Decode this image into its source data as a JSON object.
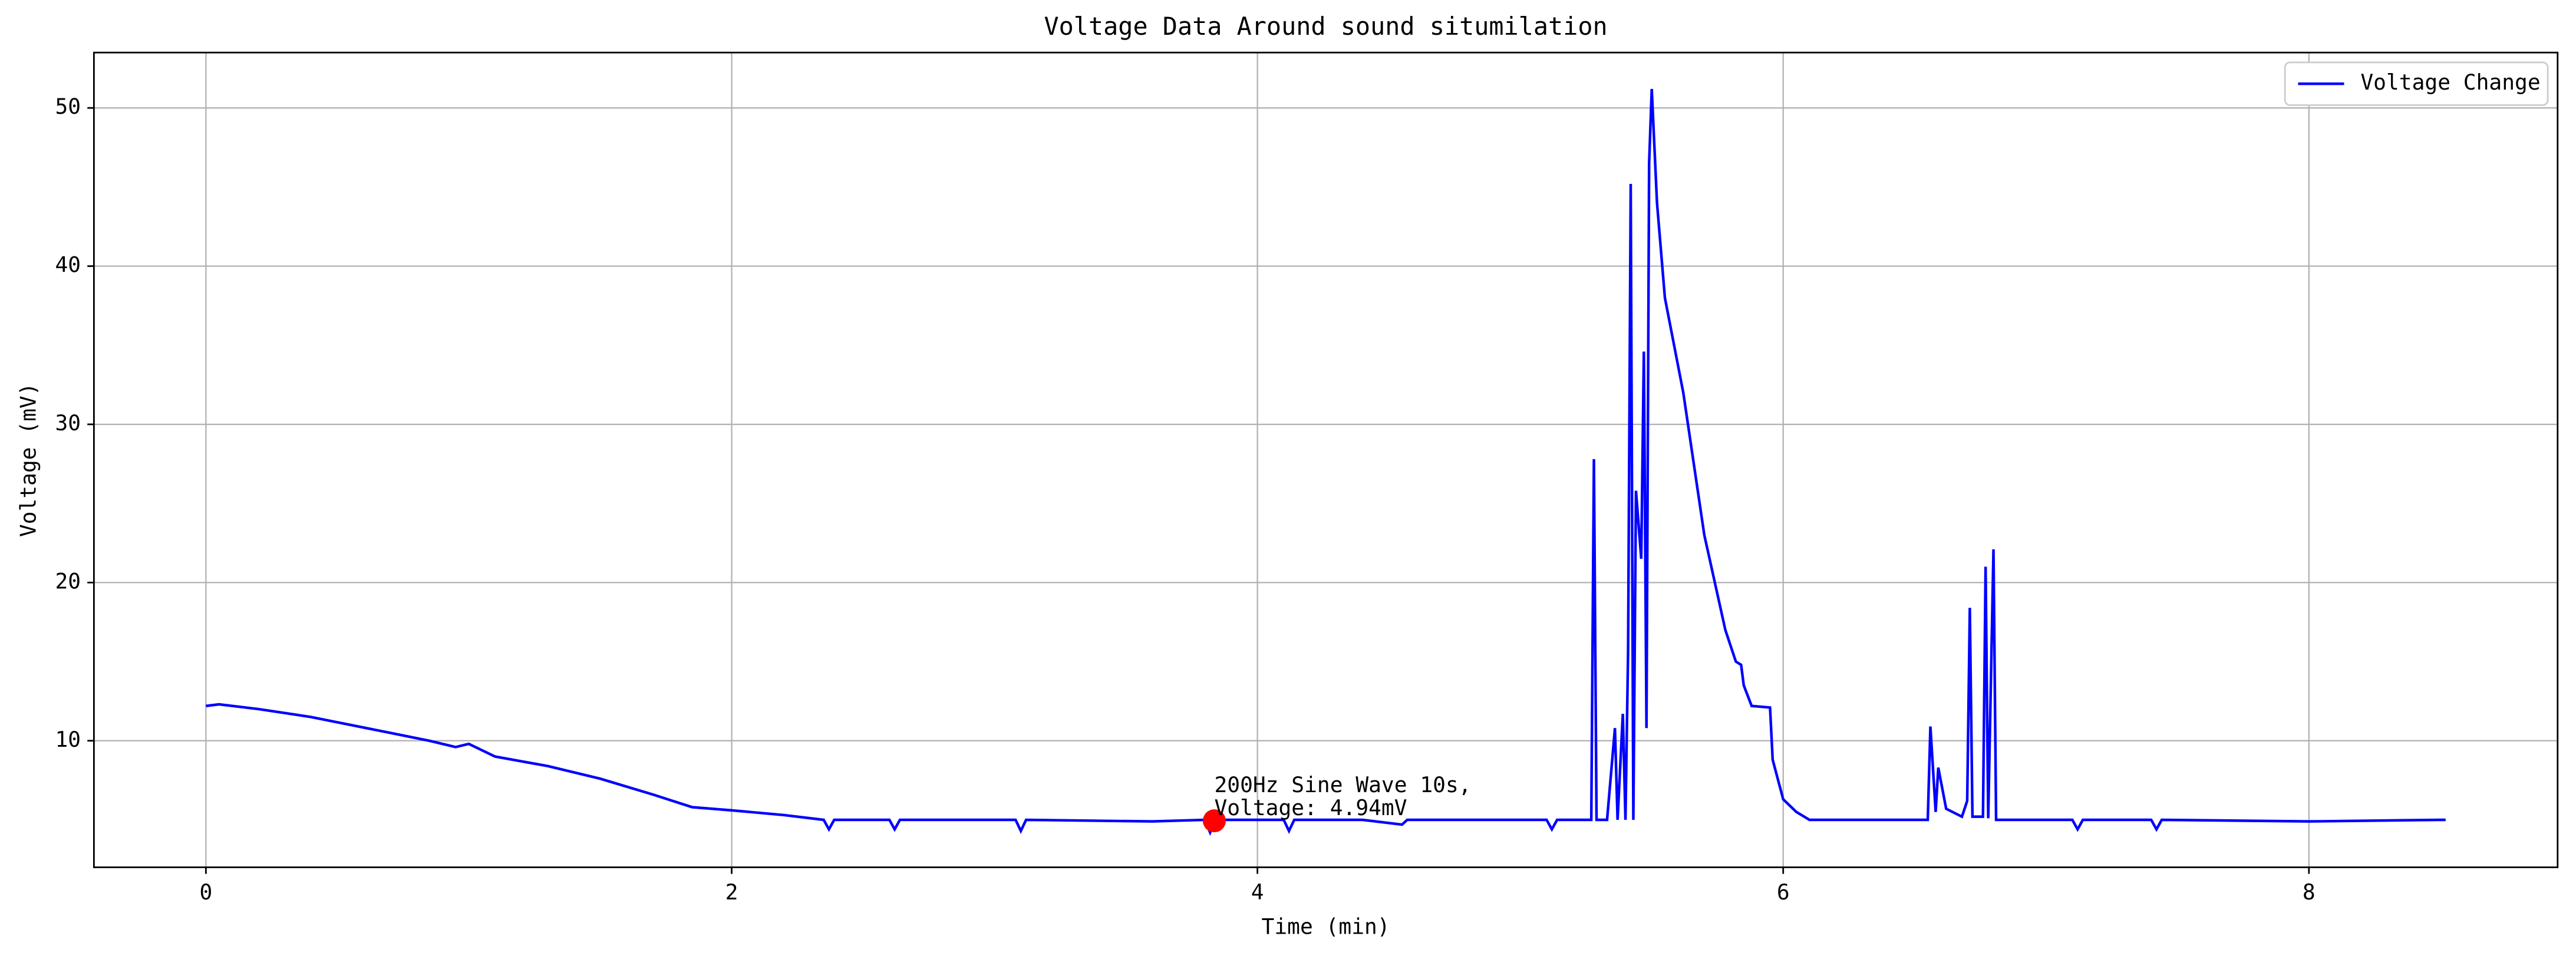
{
  "chart_data": {
    "type": "line",
    "title": "Voltage Data Around sound situmilation",
    "x_label": "Time (min)",
    "y_label": "Voltage (mV)",
    "xlim": [
      -0.426,
      8.946
    ],
    "ylim": [
      2.0,
      53.5
    ],
    "xticks": [
      0,
      2,
      4,
      6,
      8
    ],
    "yticks": [
      10,
      20,
      30,
      40,
      50
    ],
    "grid": true,
    "legend": "upper right",
    "series": [
      {
        "name": "Voltage Change",
        "color": "#0000ff",
        "x": [
          0,
          0.05,
          0.2,
          0.4,
          0.55,
          0.7,
          0.85,
          0.95,
          1.0,
          1.1,
          1.3,
          1.5,
          1.7,
          1.85,
          2.0,
          2.2,
          2.35,
          2.37,
          2.39,
          2.6,
          2.62,
          2.64,
          3.08,
          3.1,
          3.12,
          3.6,
          3.8,
          3.82,
          3.84,
          4.0,
          4.1,
          4.12,
          4.14,
          4.4,
          4.55,
          4.57,
          5.0,
          5.1,
          5.12,
          5.14,
          5.27,
          5.28,
          5.29,
          5.33,
          5.36,
          5.37,
          5.39,
          5.4,
          5.41,
          5.42,
          5.43,
          5.44,
          5.46,
          5.47,
          5.48,
          5.49,
          5.5,
          5.52,
          5.55,
          5.62,
          5.7,
          5.78,
          5.82,
          5.84,
          5.85,
          5.88,
          5.95,
          5.96,
          6.0,
          6.05,
          6.1,
          6.55,
          6.56,
          6.58,
          6.59,
          6.62,
          6.68,
          6.7,
          6.71,
          6.72,
          6.76,
          6.77,
          6.78,
          6.8,
          6.81,
          7.1,
          7.12,
          7.14,
          7.4,
          7.42,
          7.44,
          8.0,
          8.5,
          8.52
        ],
        "values": [
          12.2,
          12.3,
          12.0,
          11.5,
          11.0,
          10.5,
          10.0,
          9.6,
          9.8,
          9.0,
          8.4,
          7.6,
          6.6,
          5.8,
          5.6,
          5.3,
          5.0,
          4.4,
          5.0,
          5.0,
          4.4,
          5.0,
          5.0,
          4.3,
          5.0,
          4.9,
          5.0,
          4.2,
          5.0,
          5.0,
          5.0,
          4.3,
          5.0,
          5.0,
          4.7,
          5.0,
          5.0,
          5.0,
          4.4,
          5.0,
          5.0,
          27.8,
          5.0,
          5.0,
          10.8,
          5.0,
          11.7,
          5.0,
          15.6,
          45.2,
          5.0,
          25.8,
          21.5,
          34.6,
          10.8,
          46.5,
          51.2,
          44,
          38,
          32,
          23,
          17,
          15,
          14.8,
          13.5,
          12.2,
          12.1,
          8.8,
          6.3,
          5.5,
          5.0,
          5.0,
          10.9,
          5.5,
          8.3,
          5.7,
          5.2,
          6.2,
          18.4,
          5.2,
          5.2,
          21.0,
          5.1,
          22.1,
          5.0,
          5.0,
          4.4,
          5.0,
          5.0,
          4.4,
          5.0,
          4.9,
          5.0,
          5.0
        ]
      }
    ],
    "annotation": {
      "x": 3.836,
      "y": 4.94,
      "color": "#ff0000",
      "text": [
        "200Hz Sine Wave 10s,",
        "Voltage: 4.94mV"
      ]
    }
  }
}
